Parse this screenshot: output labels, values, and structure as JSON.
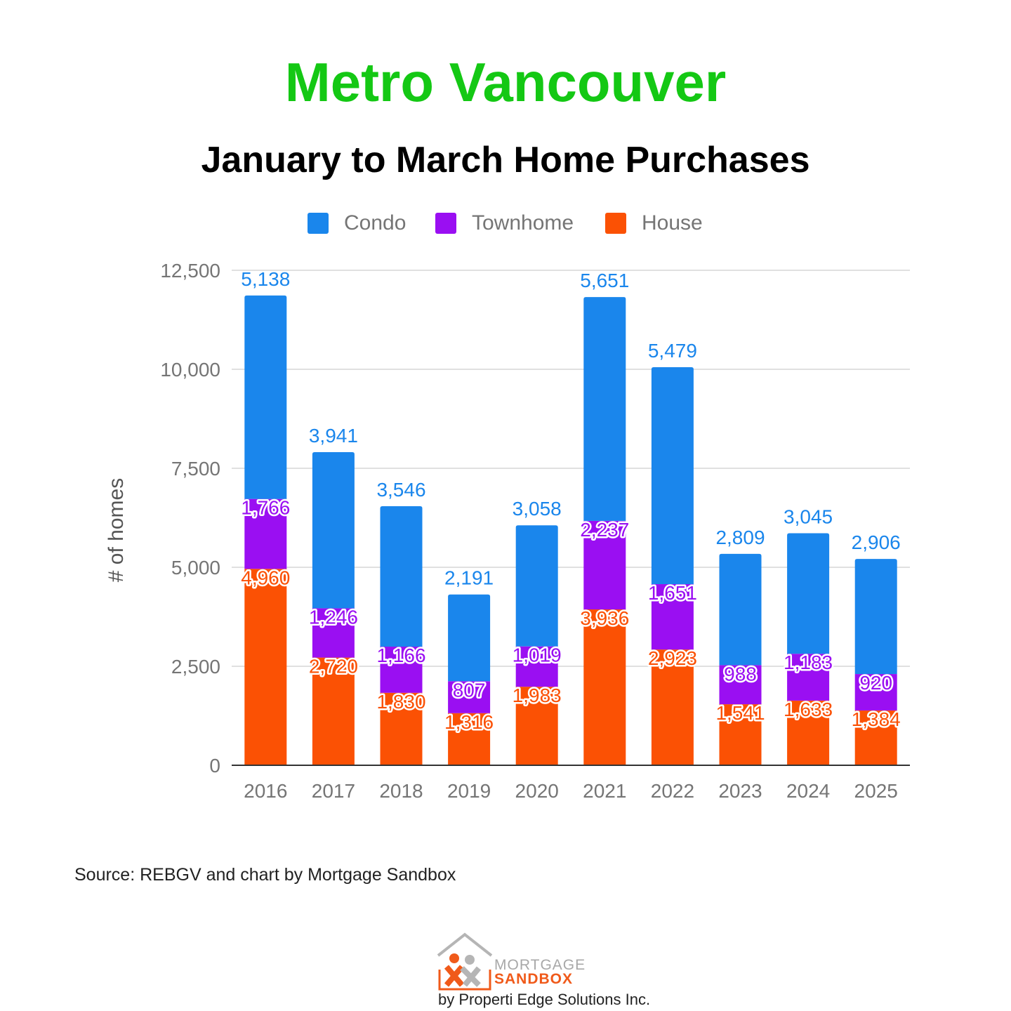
{
  "title": "Metro Vancouver",
  "subtitle": "January to March Home Purchases",
  "source": "Source: REBGV and chart by Mortgage Sandbox",
  "logo": {
    "line1": "MORTGAGE",
    "line2": "SANDBOX",
    "tagline": "by Properti Edge Solutions Inc."
  },
  "colors": {
    "title": "#14c814",
    "Condo": "#1a86ec",
    "Townhome": "#9a0ff2",
    "House": "#fb5104"
  },
  "chart_data": {
    "type": "bar",
    "stacked": true,
    "title": "",
    "xlabel": "",
    "ylabel": "# of homes",
    "ylim": [
      0,
      12500
    ],
    "yticks": [
      0,
      2500,
      5000,
      7500,
      10000,
      12500
    ],
    "ytick_labels": [
      "0",
      "2,500",
      "5,000",
      "7,500",
      "10,000",
      "12,500"
    ],
    "grid": true,
    "legend": "top-center",
    "categories": [
      "2016",
      "2017",
      "2018",
      "2019",
      "2020",
      "2021",
      "2022",
      "2023",
      "2024",
      "2025"
    ],
    "series": [
      {
        "name": "House",
        "values": [
          4960,
          2720,
          1830,
          1316,
          1983,
          3936,
          2923,
          1541,
          1633,
          1384
        ],
        "labels": [
          "4,960",
          "2,720",
          "1,830",
          "1,316",
          "1,983",
          "3,936",
          "2,923",
          "1,541",
          "1,633",
          "1,384"
        ]
      },
      {
        "name": "Townhome",
        "values": [
          1766,
          1246,
          1166,
          807,
          1019,
          2237,
          1651,
          988,
          1183,
          920
        ],
        "labels": [
          "1,766",
          "1,246",
          "1,166",
          "807",
          "1,019",
          "2,237",
          "1,651",
          "988",
          "1,183",
          "920"
        ]
      },
      {
        "name": "Condo",
        "values": [
          5138,
          3941,
          3546,
          2191,
          3058,
          5651,
          5479,
          2809,
          3045,
          2906
        ],
        "labels": [
          "5,138",
          "3,941",
          "3,546",
          "2,191",
          "3,058",
          "5,651",
          "5,479",
          "2,809",
          "3,045",
          "2,906"
        ]
      }
    ],
    "legend_order": [
      "Condo",
      "Townhome",
      "House"
    ]
  }
}
